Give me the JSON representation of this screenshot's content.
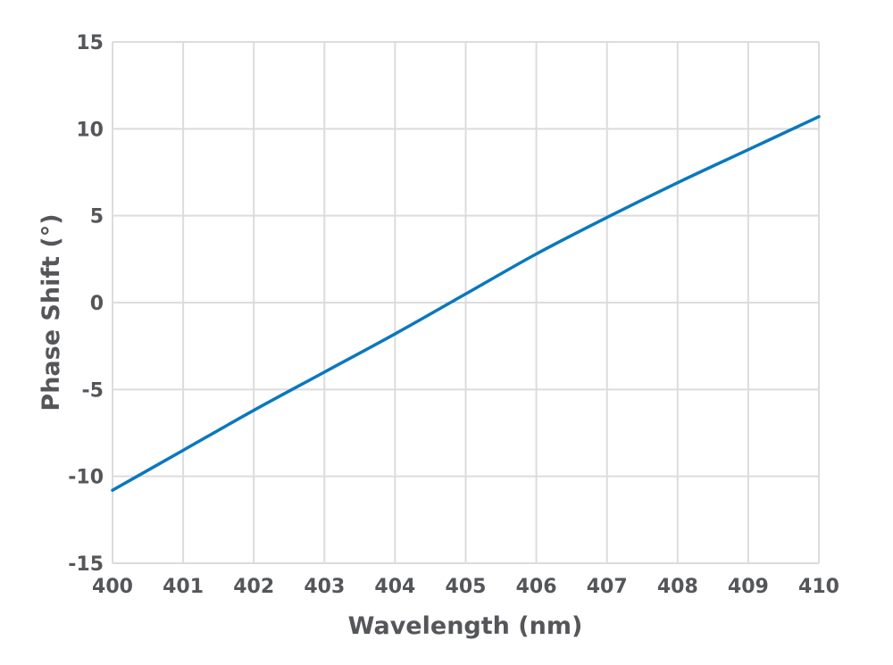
{
  "chart_data": {
    "type": "line",
    "title": "",
    "xlabel": "Wavelength (nm)",
    "ylabel": "Phase Shift (°)",
    "xlim": [
      400,
      410
    ],
    "ylim": [
      -15,
      15
    ],
    "x_ticks": [
      "400",
      "401",
      "402",
      "403",
      "404",
      "405",
      "406",
      "407",
      "408",
      "409",
      "410"
    ],
    "y_ticks": [
      "15",
      "10",
      "5",
      "0",
      "-5",
      "-10",
      "-15"
    ],
    "grid": true,
    "series_color": "#0a78be",
    "grid_color": "#dcdcdc",
    "text_color": "#55565a",
    "series": [
      {
        "x": [
          400,
          401,
          402,
          403,
          404,
          405,
          406,
          407,
          408,
          409,
          410
        ],
        "y": [
          -10.8,
          -8.5,
          -6.2,
          -4.0,
          -1.8,
          0.5,
          2.8,
          4.9,
          6.9,
          8.8,
          10.7
        ]
      }
    ]
  }
}
